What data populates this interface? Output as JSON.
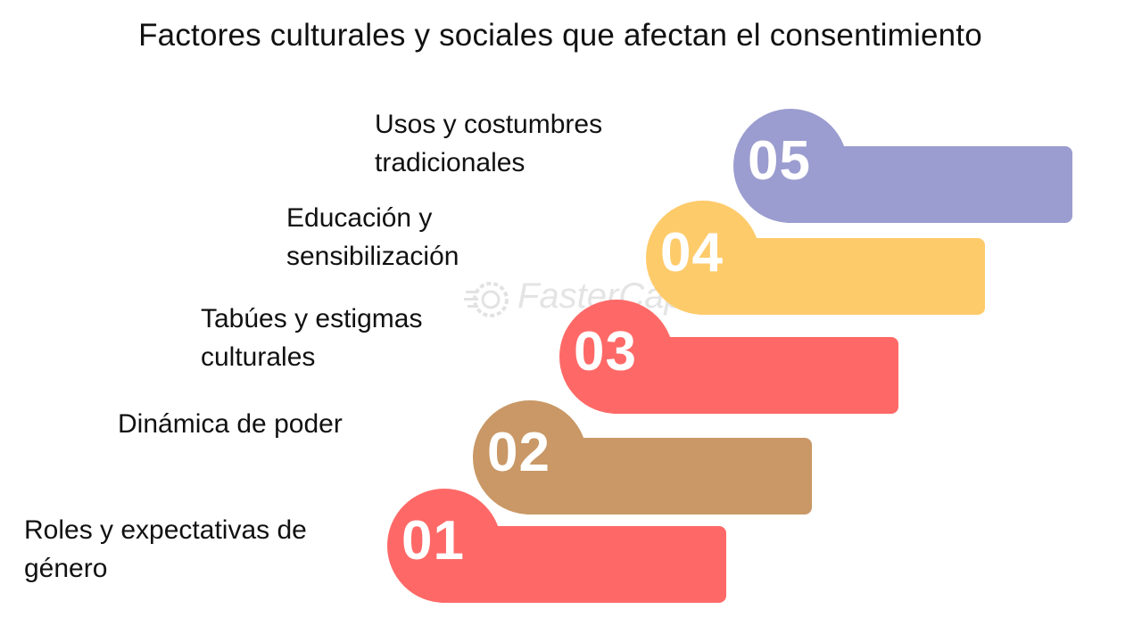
{
  "title": "Factores culturales y sociales que afectan el consentimiento",
  "watermark": "FasterCapital",
  "steps": [
    {
      "number": "01",
      "label_lines": [
        "Roles y expectativas de",
        "género"
      ],
      "color": "#fe6967"
    },
    {
      "number": "02",
      "label_lines": [
        "Dinámica de poder"
      ],
      "color": "#c99866"
    },
    {
      "number": "03",
      "label_lines": [
        "Tabúes y estigmas",
        "culturales"
      ],
      "color": "#fe6967"
    },
    {
      "number": "04",
      "label_lines": [
        "Educación y",
        "sensibilización"
      ],
      "color": "#fecb6b"
    },
    {
      "number": "05",
      "label_lines": [
        "Usos y costumbres",
        "tradicionales"
      ],
      "color": "#9b9ccf"
    }
  ]
}
